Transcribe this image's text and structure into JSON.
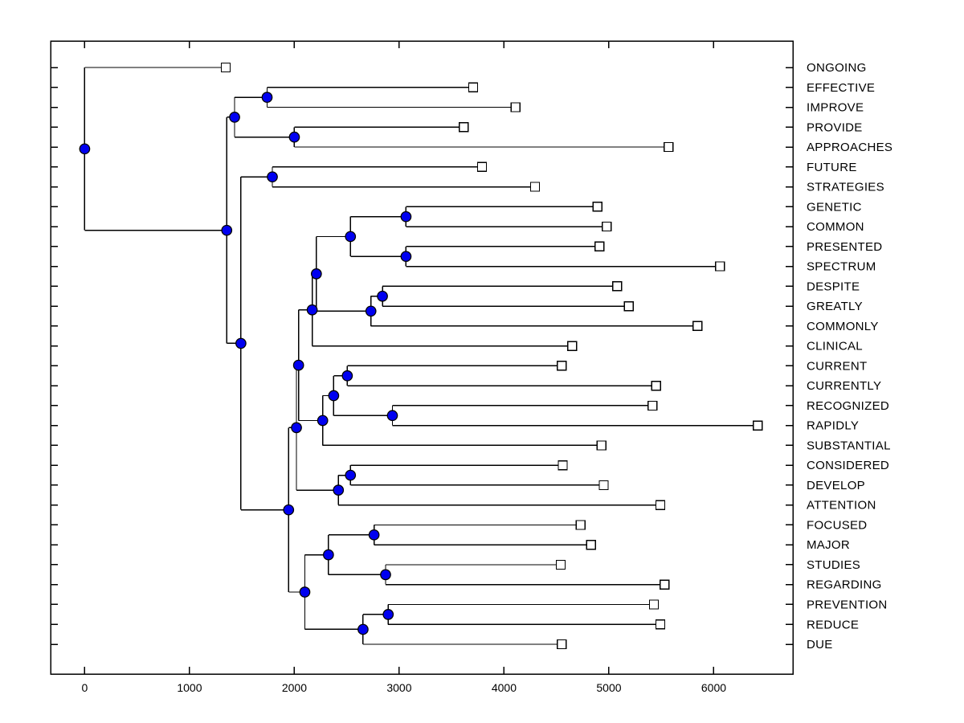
{
  "figure": {
    "background": "#ffffff",
    "axis_color": "#000000",
    "branch_color": "#000000"
  },
  "chart_data": {
    "type": "dendrogram",
    "orientation": "left-to-right",
    "title": "",
    "xlabel": "",
    "ylabel": "",
    "grid": false,
    "legend": "none",
    "x_range": [
      -325,
      6755
    ],
    "x_tick_values": [
      0,
      1000,
      2000,
      3000,
      4000,
      5000,
      6000
    ],
    "x_tick_labels": [
      "0",
      "1000",
      "2000",
      "3000",
      "4000",
      "5000",
      "6000"
    ],
    "marker_styles": {
      "internal_node": {
        "shape": "circle",
        "fill": "#0000f0",
        "stroke": "#000000"
      },
      "leaf_node": {
        "shape": "square",
        "fill": "#ffffff",
        "stroke": "#000000"
      }
    },
    "leaf_labels_in_order": [
      "ONGOING",
      "EFFECTIVE",
      "IMPROVE",
      "PROVIDE",
      "APPROACHES",
      "FUTURE",
      "STRATEGIES",
      "GENETIC",
      "COMMON",
      "PRESENTED",
      "SPECTRUM",
      "DESPITE",
      "GREATLY",
      "COMMONLY",
      "CLINICAL",
      "CURRENT",
      "CURRENTLY",
      "RECOGNIZED",
      "RAPIDLY",
      "SUBSTANTIAL",
      "CONSIDERED",
      "DEVELOP",
      "ATTENTION",
      "FOCUSED",
      "MAJOR",
      "STUDIES",
      "REGARDING",
      "PREVENTION",
      "REDUCE",
      "DUE"
    ],
    "leaf_distances": {
      "ONGOING": 1345,
      "EFFECTIVE": 3705,
      "IMPROVE": 4110,
      "PROVIDE": 3615,
      "APPROACHES": 5570,
      "FUTURE": 3790,
      "STRATEGIES": 4295,
      "GENETIC": 4890,
      "COMMON": 4980,
      "PRESENTED": 4910,
      "SPECTRUM": 6060,
      "DESPITE": 5080,
      "GREATLY": 5190,
      "COMMONLY": 5845,
      "CLINICAL": 4650,
      "CURRENT": 4550,
      "CURRENTLY": 5450,
      "RECOGNIZED": 5415,
      "RAPIDLY": 6420,
      "SUBSTANTIAL": 4930,
      "CONSIDERED": 4560,
      "DEVELOP": 4950,
      "ATTENTION": 5490,
      "FOCUSED": 4730,
      "MAJOR": 4830,
      "STUDIES": 4540,
      "REGARDING": 5530,
      "PREVENTION": 5430,
      "REDUCE": 5490,
      "DUE": 4550
    },
    "tree": {
      "x": 0,
      "children": [
        {
          "label": "ONGOING",
          "x": 1345
        },
        {
          "x": 1355,
          "children": [
            {
              "x": 1430,
              "children": [
                {
                  "x": 1740,
                  "children": [
                    {
                      "label": "EFFECTIVE",
                      "x": 3705
                    },
                    {
                      "label": "IMPROVE",
                      "x": 4110
                    }
                  ]
                },
                {
                  "x": 2000,
                  "children": [
                    {
                      "label": "PROVIDE",
                      "x": 3615
                    },
                    {
                      "label": "APPROACHES",
                      "x": 5570
                    }
                  ]
                }
              ]
            },
            {
              "x": 1490,
              "children": [
                {
                  "x": 1790,
                  "children": [
                    {
                      "label": "FUTURE",
                      "x": 3790
                    },
                    {
                      "label": "STRATEGIES",
                      "x": 4295
                    }
                  ]
                },
                {
                  "x": 1945,
                  "children": [
                    {
                      "x": 2020,
                      "children": [
                        {
                          "x": 2040,
                          "children": [
                            {
                              "x": 2170,
                              "children": [
                                {
                                  "x": 2210,
                                  "children": [
                                    {
                                      "x": 2535,
                                      "children": [
                                        {
                                          "x": 3065,
                                          "children": [
                                            {
                                              "label": "GENETIC",
                                              "x": 4890
                                            },
                                            {
                                              "label": "COMMON",
                                              "x": 4980
                                            }
                                          ]
                                        },
                                        {
                                          "x": 3065,
                                          "children": [
                                            {
                                              "label": "PRESENTED",
                                              "x": 4910
                                            },
                                            {
                                              "label": "SPECTRUM",
                                              "x": 6060
                                            }
                                          ]
                                        }
                                      ]
                                    },
                                    {
                                      "x": 2730,
                                      "children": [
                                        {
                                          "x": 2840,
                                          "children": [
                                            {
                                              "label": "DESPITE",
                                              "x": 5080
                                            },
                                            {
                                              "label": "GREATLY",
                                              "x": 5190
                                            }
                                          ]
                                        },
                                        {
                                          "label": "COMMONLY",
                                          "x": 5845
                                        }
                                      ]
                                    }
                                  ]
                                },
                                {
                                  "label": "CLINICAL",
                                  "x": 4650
                                }
                              ]
                            },
                            {
                              "x": 2270,
                              "children": [
                                {
                                  "x": 2375,
                                  "children": [
                                    {
                                      "x": 2505,
                                      "children": [
                                        {
                                          "label": "CURRENT",
                                          "x": 4550
                                        },
                                        {
                                          "label": "CURRENTLY",
                                          "x": 5450
                                        }
                                      ]
                                    },
                                    {
                                      "x": 2935,
                                      "children": [
                                        {
                                          "label": "RECOGNIZED",
                                          "x": 5415
                                        },
                                        {
                                          "label": "RAPIDLY",
                                          "x": 6420
                                        }
                                      ]
                                    }
                                  ]
                                },
                                {
                                  "label": "SUBSTANTIAL",
                                  "x": 4930
                                }
                              ]
                            }
                          ]
                        },
                        {
                          "x": 2420,
                          "children": [
                            {
                              "x": 2535,
                              "children": [
                                {
                                  "label": "CONSIDERED",
                                  "x": 4560
                                },
                                {
                                  "label": "DEVELOP",
                                  "x": 4950
                                }
                              ]
                            },
                            {
                              "label": "ATTENTION",
                              "x": 5490
                            }
                          ]
                        }
                      ]
                    },
                    {
                      "x": 2100,
                      "children": [
                        {
                          "x": 2325,
                          "children": [
                            {
                              "x": 2760,
                              "children": [
                                {
                                  "label": "FOCUSED",
                                  "x": 4730
                                },
                                {
                                  "label": "MAJOR",
                                  "x": 4830
                                }
                              ]
                            },
                            {
                              "x": 2870,
                              "children": [
                                {
                                  "label": "STUDIES",
                                  "x": 4540
                                },
                                {
                                  "label": "REGARDING",
                                  "x": 5530
                                }
                              ]
                            }
                          ]
                        },
                        {
                          "x": 2655,
                          "children": [
                            {
                              "x": 2895,
                              "children": [
                                {
                                  "label": "PREVENTION",
                                  "x": 5430
                                },
                                {
                                  "label": "REDUCE",
                                  "x": 5490
                                }
                              ]
                            },
                            {
                              "label": "DUE",
                              "x": 4550
                            }
                          ]
                        }
                      ]
                    }
                  ]
                }
              ]
            }
          ]
        }
      ]
    }
  }
}
